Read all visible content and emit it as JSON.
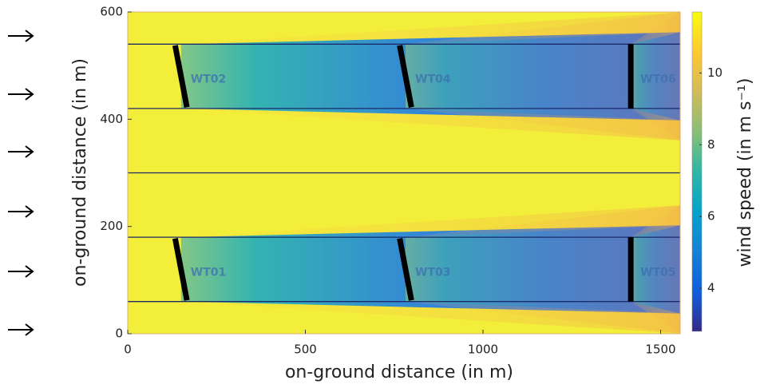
{
  "chart_data": {
    "type": "heatmap",
    "xlabel": "on-ground distance (in m)",
    "ylabel": "on-ground distance (in m)",
    "colorbar_label": "wind speed (in m s⁻¹)",
    "xlim": [
      0,
      1555
    ],
    "xticks": [
      0,
      500,
      1000,
      1500
    ],
    "ylim": [
      0,
      600
    ],
    "yticks": [
      0,
      200,
      400,
      600
    ],
    "clim": [
      2.8,
      11.7
    ],
    "cticks": [
      4,
      6,
      8,
      10
    ],
    "hlines": [
      60,
      180,
      300,
      420,
      540
    ],
    "turbines": [
      {
        "label": "WT01",
        "x": 150,
        "y": 120,
        "yaw": 16
      },
      {
        "label": "WT02",
        "x": 150,
        "y": 480,
        "yaw": 16
      },
      {
        "label": "WT03",
        "x": 782,
        "y": 120,
        "yaw": 16
      },
      {
        "label": "WT04",
        "x": 782,
        "y": 480,
        "yaw": 16
      },
      {
        "label": "WT05",
        "x": 1416,
        "y": 120,
        "yaw": 0
      },
      {
        "label": "WT06",
        "x": 1416,
        "y": 480,
        "yaw": 0
      }
    ]
  }
}
